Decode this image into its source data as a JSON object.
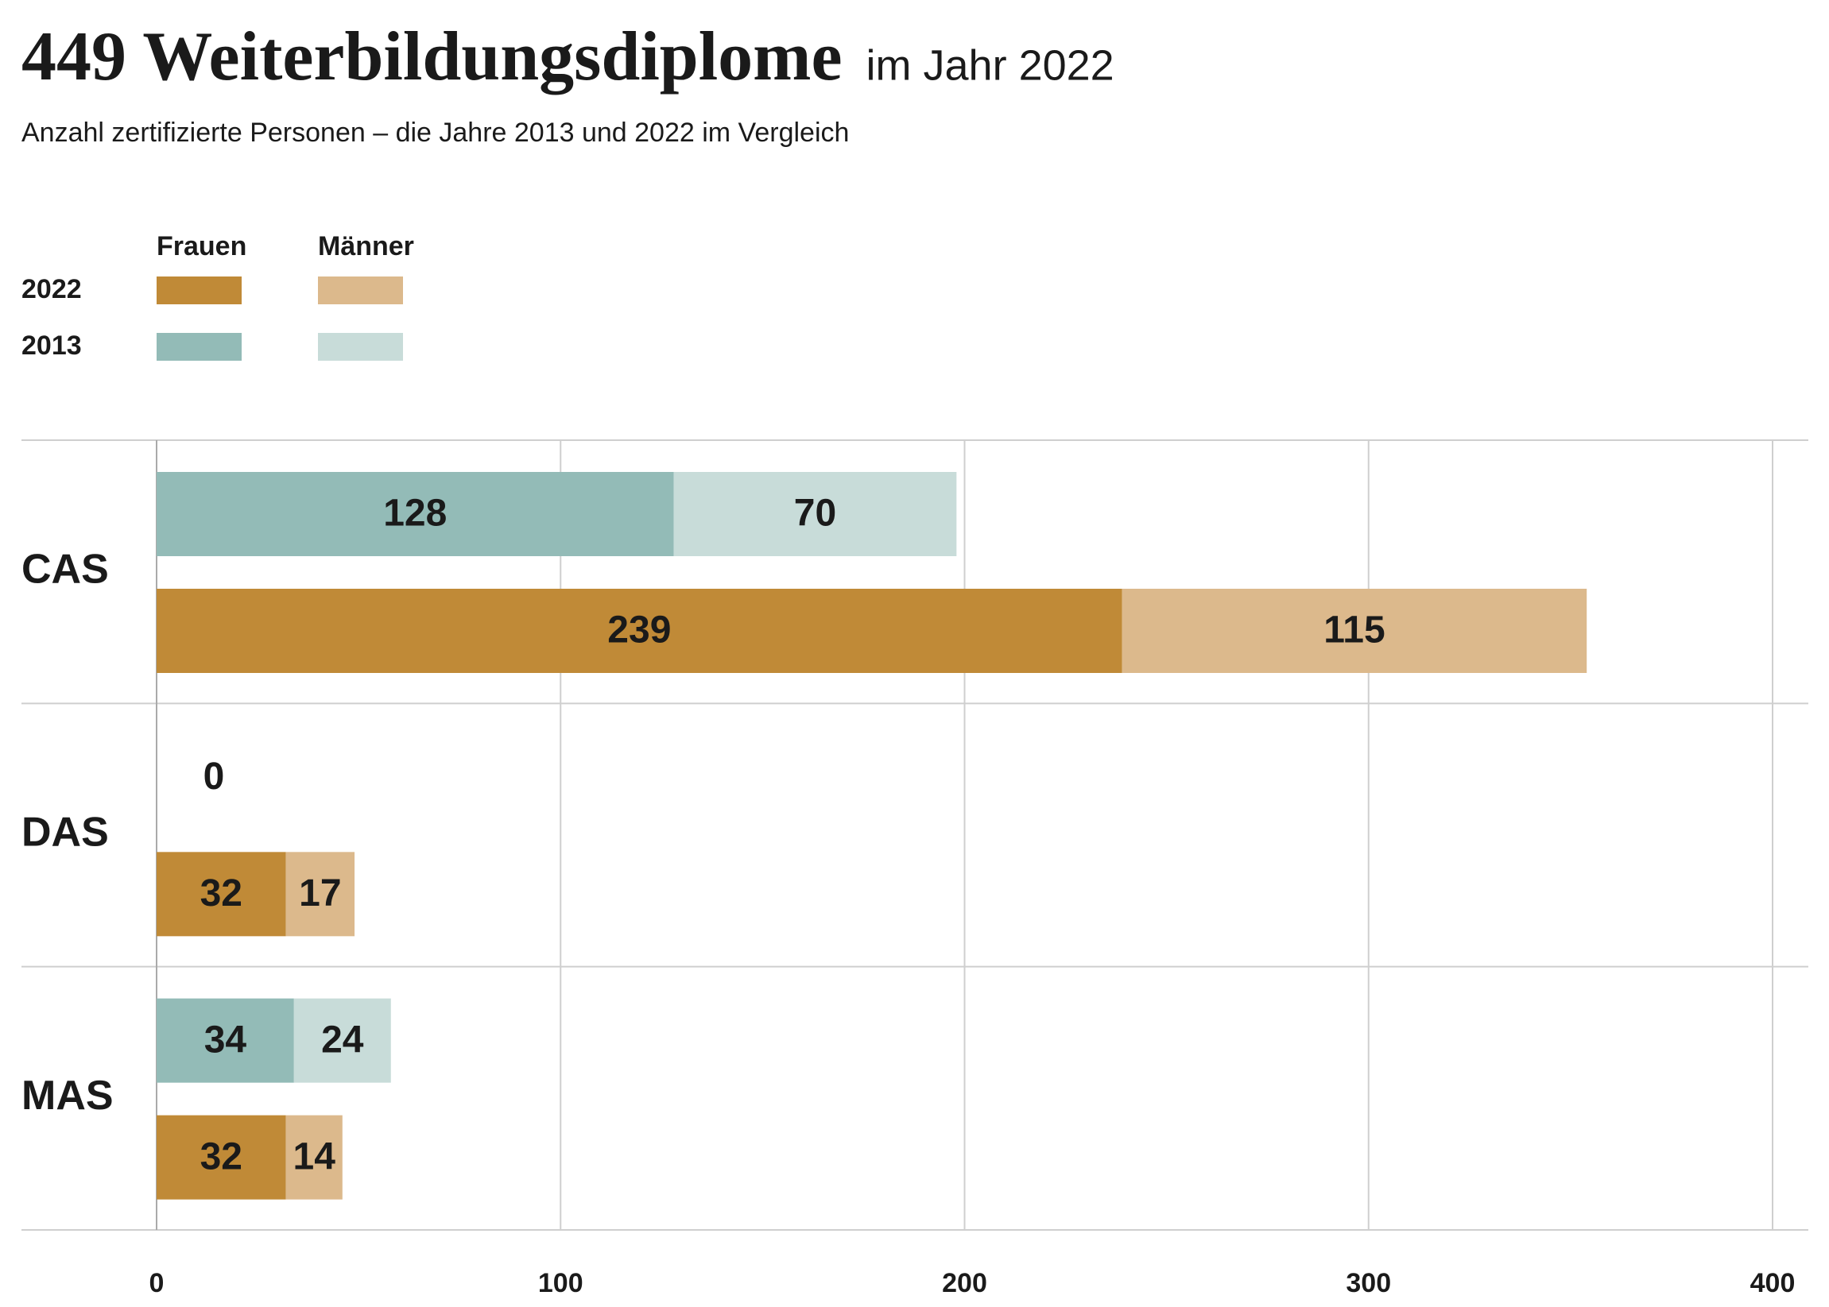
{
  "chart_data": {
    "type": "grouped-stacked-bar-horizontal",
    "title": "449 Weiterbildungsdiplome",
    "title_suffix": "im Jahr 2022",
    "subtitle": "Anzahl zertifizierte Personen – die Jahre 2013 und 2022 im Vergleich",
    "categories": [
      "CAS",
      "DAS",
      "MAS"
    ],
    "groups": [
      {
        "name": "2013",
        "series": [
          {
            "name": "Frauen",
            "color": "#93bbb7",
            "values": [
              128,
              0,
              34
            ]
          },
          {
            "name": "Männer",
            "color": "#c8dcd9",
            "values": [
              70,
              null,
              24
            ]
          }
        ]
      },
      {
        "name": "2022",
        "series": [
          {
            "name": "Frauen",
            "color": "#c08a37",
            "values": [
              239,
              32,
              32
            ]
          },
          {
            "name": "Männer",
            "color": "#dcb98c",
            "values": [
              115,
              17,
              14
            ]
          }
        ]
      }
    ],
    "xlim": [
      0,
      400
    ],
    "xticks": [
      0,
      100,
      200,
      300,
      400
    ],
    "grid": true
  }
}
